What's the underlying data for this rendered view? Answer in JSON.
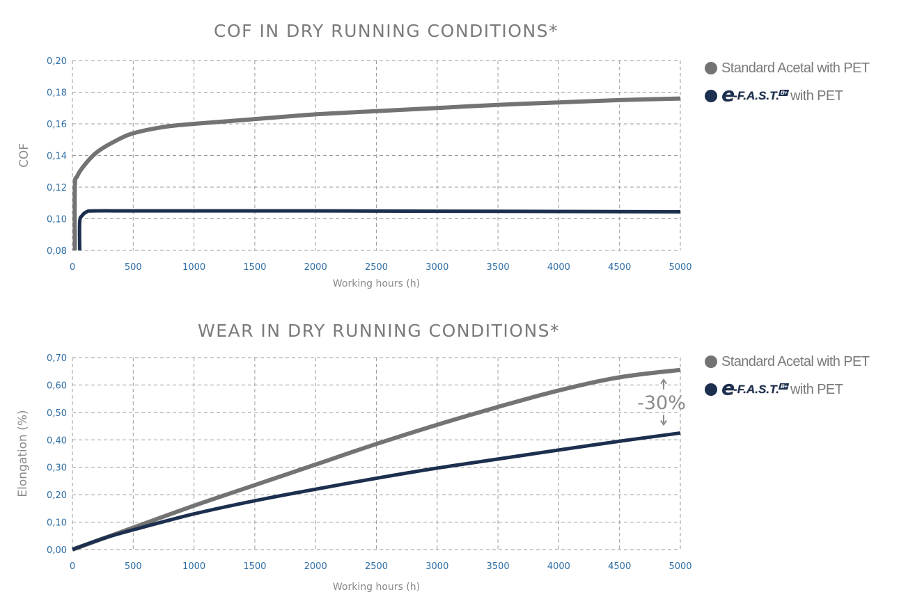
{
  "chart_data": [
    {
      "type": "line",
      "title": "COF IN DRY RUNNING CONDITIONS*",
      "xlabel": "Working hours (h)",
      "ylabel": "COF",
      "xlim": [
        0,
        5000
      ],
      "ylim": [
        0.08,
        0.2
      ],
      "xticks": [
        "0",
        "500",
        "1000",
        "1500",
        "2000",
        "2500",
        "3000",
        "3500",
        "4000",
        "4500",
        "5000"
      ],
      "yticks": [
        "0,08",
        "0,10",
        "0,12",
        "0,14",
        "0,16",
        "0,18",
        "0,20"
      ],
      "grid": true,
      "legend_position": "right",
      "series": [
        {
          "name": "Standard Acetal with PET",
          "color": "#737373",
          "x": [
            20,
            20,
            40,
            100,
            200,
            350,
            500,
            750,
            1000,
            1500,
            2000,
            2500,
            3000,
            3500,
            4000,
            4500,
            5000
          ],
          "y": [
            0.08,
            0.12,
            0.127,
            0.134,
            0.142,
            0.149,
            0.154,
            0.158,
            0.16,
            0.163,
            0.166,
            0.168,
            0.17,
            0.172,
            0.1735,
            0.175,
            0.176
          ]
        },
        {
          "name": "e-F.A.S.T. B+ with PET",
          "color": "#1c2f4f",
          "x": [
            60,
            60,
            80,
            120,
            180,
            500,
            1000,
            2000,
            3000,
            4000,
            5000
          ],
          "y": [
            0.08,
            0.098,
            0.102,
            0.1045,
            0.105,
            0.105,
            0.105,
            0.105,
            0.1048,
            0.1046,
            0.1044
          ]
        }
      ]
    },
    {
      "type": "line",
      "title": "WEAR IN DRY RUNNING CONDITIONS*",
      "xlabel": "Working hours (h)",
      "ylabel": "Elongation (%)",
      "xlim": [
        0,
        5000
      ],
      "ylim": [
        0.0,
        0.7
      ],
      "xticks": [
        "0",
        "500",
        "1000",
        "1500",
        "2000",
        "2500",
        "3000",
        "3500",
        "4000",
        "4500",
        "5000"
      ],
      "yticks": [
        "0,00",
        "0,10",
        "0,20",
        "0,30",
        "0,40",
        "0,50",
        "0,60",
        "0,70"
      ],
      "grid": true,
      "legend_position": "right",
      "annotation": "-30%",
      "series": [
        {
          "name": "Standard Acetal with PET",
          "color": "#737373",
          "x": [
            0,
            250,
            500,
            1000,
            1500,
            2000,
            2500,
            3000,
            3500,
            4000,
            4500,
            5000
          ],
          "y": [
            0.0,
            0.04,
            0.08,
            0.16,
            0.235,
            0.31,
            0.385,
            0.455,
            0.52,
            0.58,
            0.628,
            0.655
          ]
        },
        {
          "name": "e-F.A.S.T. B+ with PET",
          "color": "#1c2f4f",
          "x": [
            0,
            250,
            500,
            1000,
            1500,
            2000,
            2500,
            3000,
            3500,
            4000,
            4500,
            5000
          ],
          "y": [
            0.0,
            0.04,
            0.072,
            0.13,
            0.178,
            0.22,
            0.26,
            0.297,
            0.33,
            0.363,
            0.395,
            0.425
          ]
        }
      ]
    }
  ],
  "legend": {
    "standard_label": "Standard Acetal with PET",
    "efast_logo_e": "e",
    "efast_logo_text": "-F.A.S.T.",
    "efast_badge": "B+",
    "efast_suffix": "with PET"
  }
}
